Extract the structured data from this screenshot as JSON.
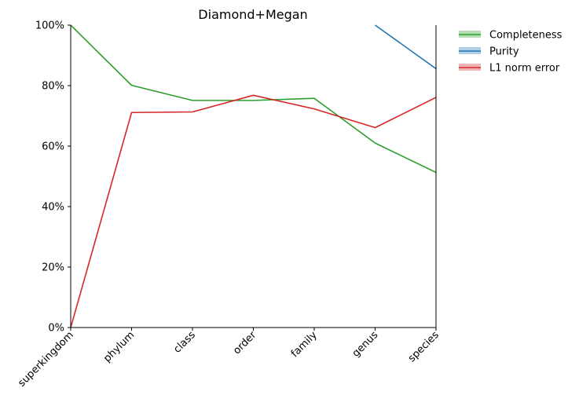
{
  "chart_data": {
    "type": "line",
    "title": "Diamond+Megan",
    "xlabel": "",
    "ylabel": "",
    "categories": [
      "superkingdom",
      "phylum",
      "class",
      "order",
      "family",
      "genus",
      "species"
    ],
    "y_ticks": [
      "0%",
      "20%",
      "40%",
      "60%",
      "80%",
      "100%"
    ],
    "ylim": [
      0,
      100
    ],
    "grid": false,
    "legend_position": "outside top-right",
    "series": [
      {
        "name": "Completeness",
        "color": "#2ca02c",
        "values": [
          100,
          80.1,
          75.1,
          75.1,
          75.8,
          61.0,
          51.3
        ]
      },
      {
        "name": "Purity",
        "color": "#1f77b4",
        "values": [
          null,
          null,
          null,
          null,
          null,
          100,
          85.6
        ]
      },
      {
        "name": "L1 norm error",
        "color": "#d62728",
        "values": [
          0,
          71.1,
          71.3,
          76.8,
          72.3,
          66.1,
          76.1
        ]
      }
    ]
  }
}
